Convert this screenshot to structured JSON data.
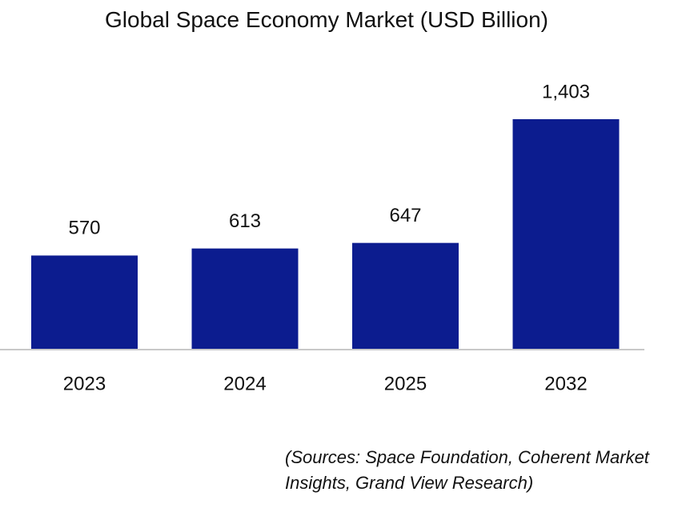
{
  "chart_data": {
    "type": "bar",
    "title": "Global Space Economy Market (USD Billion)",
    "categories": [
      "2023",
      "2024",
      "2025",
      "2032"
    ],
    "values": [
      570,
      613,
      647,
      1403
    ],
    "value_labels": [
      "570",
      "613",
      "647",
      "1,403"
    ],
    "color": "#0c1c8f",
    "note": "(Sources: Space Foundation, Coherent Market Insights, Grand View Research)"
  }
}
